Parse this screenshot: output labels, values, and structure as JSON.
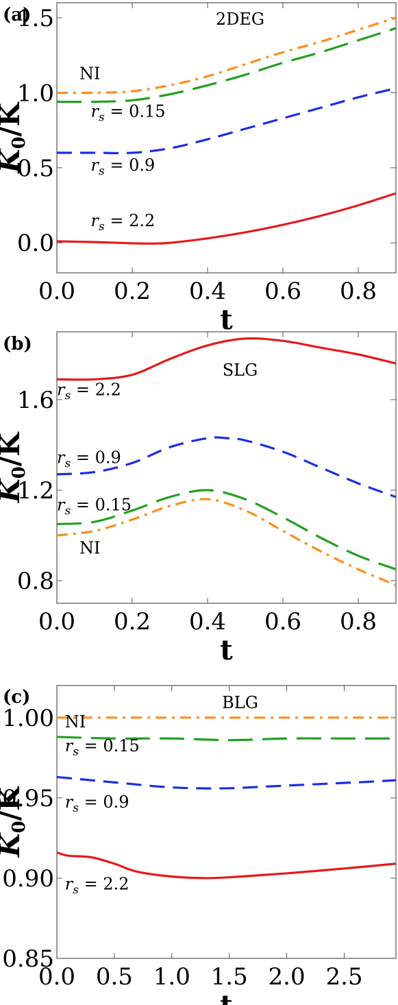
{
  "chart_data": [
    {
      "type": "line",
      "panel_label": "(a)",
      "title": "2DEG",
      "xlabel": "t",
      "ylabel": "K0/K",
      "ylabel_parts": {
        "main": "K",
        "sub": "0",
        "rest": "/K"
      },
      "xlim": [
        0,
        0.9
      ],
      "ylim": [
        -0.2,
        1.6
      ],
      "xticks": [
        0.0,
        0.2,
        0.4,
        0.6,
        0.8
      ],
      "xtick_labels": [
        "0.0",
        "0.2",
        "0.4",
        "0.6",
        "0.8"
      ],
      "yticks": [
        0.0,
        0.5,
        1.0,
        1.5
      ],
      "ytick_labels": [
        "0.0",
        "0.5",
        "1.0",
        "1.5"
      ],
      "grid": false,
      "series": [
        {
          "name": "NI",
          "color": "#ff8c1a",
          "dash": "dashdot",
          "x": [
            0,
            0.1,
            0.2,
            0.3,
            0.4,
            0.5,
            0.6,
            0.7,
            0.8,
            0.9
          ],
          "y": [
            1.0,
            1.0,
            1.01,
            1.05,
            1.11,
            1.19,
            1.27,
            1.34,
            1.42,
            1.5
          ]
        },
        {
          "name": "r_s = 0.15",
          "color": "#22a022",
          "dash": "longdash",
          "x": [
            0,
            0.1,
            0.2,
            0.3,
            0.4,
            0.5,
            0.6,
            0.7,
            0.8,
            0.9
          ],
          "y": [
            0.94,
            0.94,
            0.95,
            0.99,
            1.05,
            1.12,
            1.2,
            1.27,
            1.35,
            1.43
          ]
        },
        {
          "name": "r_s = 0.9",
          "color": "#1a2ee6",
          "dash": "dash",
          "x": [
            0,
            0.1,
            0.2,
            0.3,
            0.4,
            0.5,
            0.6,
            0.7,
            0.8,
            0.9
          ],
          "y": [
            0.6,
            0.6,
            0.6,
            0.63,
            0.69,
            0.76,
            0.83,
            0.9,
            0.97,
            1.03
          ]
        },
        {
          "name": "r_s = 2.2",
          "color": "#e61a1a",
          "dash": "solid",
          "x": [
            0,
            0.1,
            0.2,
            0.25,
            0.3,
            0.4,
            0.5,
            0.6,
            0.7,
            0.8,
            0.9
          ],
          "y": [
            0.01,
            0.005,
            -0.003,
            -0.005,
            0.0,
            0.03,
            0.07,
            0.12,
            0.18,
            0.25,
            0.33
          ]
        }
      ],
      "annotations": [
        {
          "text": "NI",
          "italic": false,
          "x": 0.06,
          "y": 1.09
        },
        {
          "text": "r_s = 0.15",
          "italic": true,
          "x": 0.09,
          "y": 0.84
        },
        {
          "text": "r_s = 0.9",
          "italic": true,
          "x": 0.09,
          "y": 0.48
        },
        {
          "text": "r_s = 2.2",
          "italic": true,
          "x": 0.09,
          "y": 0.11
        }
      ]
    },
    {
      "type": "line",
      "panel_label": "(b)",
      "title": "SLG",
      "xlabel": "t",
      "ylabel": "K0/K",
      "ylabel_parts": {
        "main": "K",
        "sub": "0",
        "rest": "/K"
      },
      "xlim": [
        0,
        0.9
      ],
      "ylim": [
        0.7,
        1.9
      ],
      "xticks": [
        0.0,
        0.2,
        0.4,
        0.6,
        0.8
      ],
      "xtick_labels": [
        "0.0",
        "0.2",
        "0.4",
        "0.6",
        "0.8"
      ],
      "yticks": [
        0.8,
        1.2,
        1.6
      ],
      "ytick_labels": [
        "0.8",
        "1.2",
        "1.6"
      ],
      "grid": false,
      "series": [
        {
          "name": "r_s = 2.2",
          "color": "#e61a1a",
          "dash": "solid",
          "x": [
            0,
            0.1,
            0.2,
            0.3,
            0.4,
            0.5,
            0.6,
            0.7,
            0.8,
            0.9
          ],
          "y": [
            1.69,
            1.69,
            1.71,
            1.78,
            1.84,
            1.87,
            1.86,
            1.83,
            1.8,
            1.76
          ]
        },
        {
          "name": "r_s = 0.9",
          "color": "#1a2ee6",
          "dash": "dash",
          "x": [
            0,
            0.1,
            0.2,
            0.3,
            0.4,
            0.45,
            0.5,
            0.6,
            0.7,
            0.8,
            0.9
          ],
          "y": [
            1.27,
            1.28,
            1.32,
            1.39,
            1.43,
            1.43,
            1.42,
            1.37,
            1.3,
            1.23,
            1.17
          ]
        },
        {
          "name": "r_s = 0.15",
          "color": "#22a022",
          "dash": "longdash",
          "x": [
            0,
            0.1,
            0.2,
            0.3,
            0.4,
            0.5,
            0.6,
            0.7,
            0.8,
            0.9
          ],
          "y": [
            1.05,
            1.06,
            1.11,
            1.17,
            1.2,
            1.16,
            1.08,
            0.99,
            0.91,
            0.85
          ]
        },
        {
          "name": "NI",
          "color": "#ff8c1a",
          "dash": "dashdot",
          "x": [
            0,
            0.1,
            0.2,
            0.3,
            0.4,
            0.5,
            0.6,
            0.7,
            0.8,
            0.9
          ],
          "y": [
            1.0,
            1.02,
            1.07,
            1.13,
            1.16,
            1.11,
            1.02,
            0.93,
            0.85,
            0.78
          ]
        }
      ],
      "annotations": [
        {
          "text": "r_s = 2.2",
          "italic": true,
          "x": 0.0,
          "y": 1.62
        },
        {
          "text": "r_s = 0.9",
          "italic": true,
          "x": 0.0,
          "y": 1.32
        },
        {
          "text": "r_s = 0.15",
          "italic": true,
          "x": 0.0,
          "y": 1.11
        },
        {
          "text": "NI",
          "italic": false,
          "x": 0.06,
          "y": 0.92
        }
      ]
    },
    {
      "type": "line",
      "panel_label": "(c)",
      "title": "BLG",
      "xlabel": "t",
      "ylabel": "K0/K",
      "ylabel_parts": {
        "main": "K",
        "sub": "0",
        "rest": "/K"
      },
      "xlim": [
        0,
        2.95
      ],
      "ylim": [
        0.85,
        1.02
      ],
      "xticks": [
        0.0,
        0.5,
        1.0,
        1.5,
        2.0,
        2.5
      ],
      "xtick_labels": [
        "0.0",
        "0.5",
        "1.0",
        "1.5",
        "2.0",
        "2.5"
      ],
      "yticks": [
        0.85,
        0.9,
        0.95,
        1.0
      ],
      "ytick_labels": [
        "0.85",
        "0.90",
        "0.95",
        "1.00"
      ],
      "grid": false,
      "series": [
        {
          "name": "NI",
          "color": "#ff8c1a",
          "dash": "dashdot",
          "x": [
            0,
            1.0,
            2.0,
            2.95
          ],
          "y": [
            1.0,
            1.0,
            1.0,
            1.0
          ]
        },
        {
          "name": "r_s = 0.15",
          "color": "#22a022",
          "dash": "longdash",
          "x": [
            0,
            0.5,
            1.0,
            1.5,
            2.0,
            2.5,
            2.95
          ],
          "y": [
            0.988,
            0.987,
            0.987,
            0.986,
            0.987,
            0.987,
            0.987
          ]
        },
        {
          "name": "r_s = 0.9",
          "color": "#1a2ee6",
          "dash": "dash",
          "x": [
            0,
            0.3,
            0.6,
            0.9,
            1.2,
            1.5,
            1.8,
            2.1,
            2.4,
            2.7,
            2.95
          ],
          "y": [
            0.963,
            0.961,
            0.959,
            0.957,
            0.956,
            0.956,
            0.957,
            0.958,
            0.959,
            0.96,
            0.961
          ]
        },
        {
          "name": "r_s = 2.2",
          "color": "#e61a1a",
          "dash": "solid",
          "x": [
            0,
            0.1,
            0.3,
            0.5,
            0.7,
            1.0,
            1.3,
            1.6,
            2.0,
            2.5,
            2.95
          ],
          "y": [
            0.916,
            0.914,
            0.913,
            0.909,
            0.904,
            0.901,
            0.9,
            0.901,
            0.903,
            0.906,
            0.909
          ]
        }
      ],
      "annotations": [
        {
          "text": "NI",
          "italic": false,
          "x": 0.07,
          "y": 0.994
        },
        {
          "text": "r_s = 0.15",
          "italic": true,
          "x": 0.07,
          "y": 0.979
        },
        {
          "text": "r_s = 0.9",
          "italic": true,
          "x": 0.07,
          "y": 0.944
        },
        {
          "text": "r_s = 2.2",
          "italic": true,
          "x": 0.07,
          "y": 0.893
        }
      ]
    }
  ]
}
